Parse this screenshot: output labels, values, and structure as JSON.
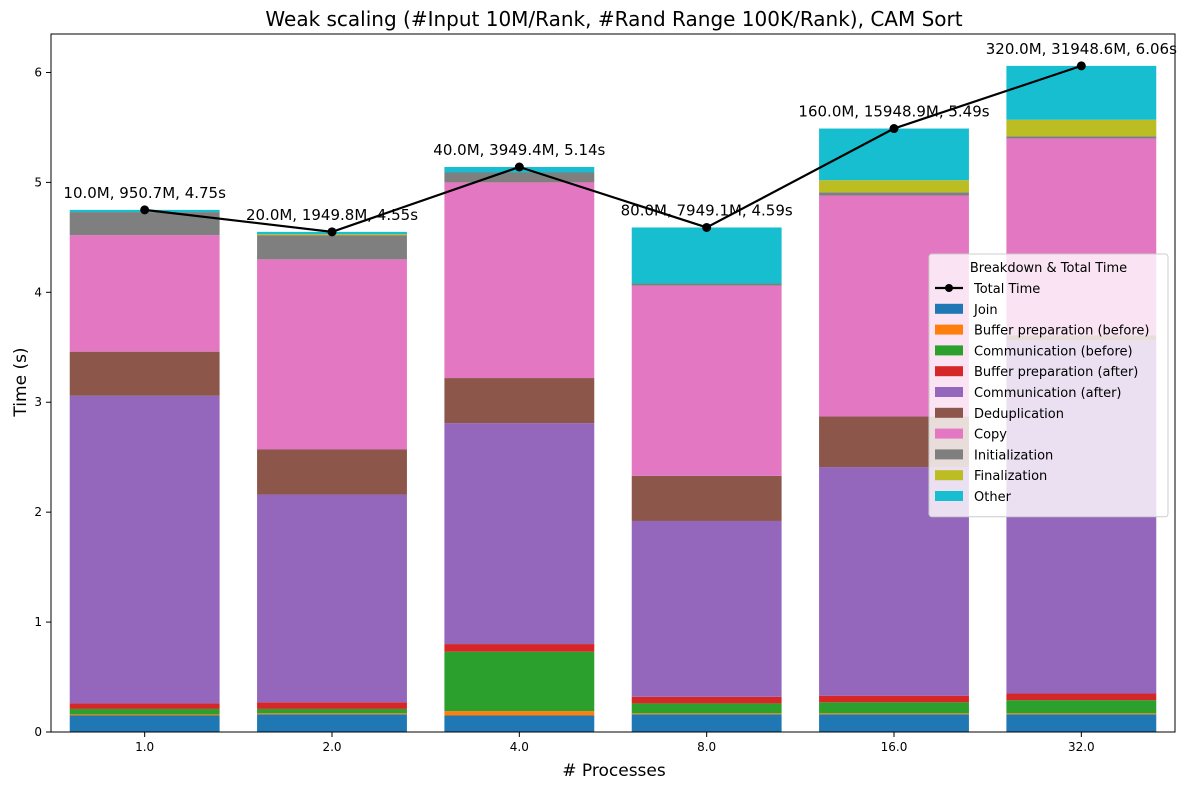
{
  "chart_data": {
    "type": "bar",
    "title": "Weak scaling (#Input 10M/Rank, #Rand Range 100K/Rank), CAM Sort",
    "xlabel": "# Processes",
    "ylabel": "Time (s)",
    "categories": [
      "1.0",
      "2.0",
      "4.0",
      "8.0",
      "16.0",
      "32.0"
    ],
    "ylim": [
      0,
      6.35
    ],
    "yticks": [
      "0",
      "1",
      "2",
      "3",
      "4",
      "5",
      "6"
    ],
    "stacked": true,
    "series": [
      {
        "name": "Join",
        "color": "#1f77b4",
        "values": [
          0.15,
          0.16,
          0.15,
          0.16,
          0.16,
          0.16
        ]
      },
      {
        "name": "Buffer preparation (before)",
        "color": "#ff7f0e",
        "values": [
          0.01,
          0.01,
          0.04,
          0.01,
          0.01,
          0.01
        ]
      },
      {
        "name": "Communication (before)",
        "color": "#2ca02c",
        "values": [
          0.05,
          0.04,
          0.54,
          0.09,
          0.1,
          0.12
        ]
      },
      {
        "name": "Buffer preparation (after)",
        "color": "#d62728",
        "values": [
          0.05,
          0.06,
          0.07,
          0.06,
          0.06,
          0.06
        ]
      },
      {
        "name": "Communication (after)",
        "color": "#9467bd",
        "values": [
          2.8,
          1.89,
          2.01,
          1.6,
          2.08,
          3.21
        ]
      },
      {
        "name": "Deduplication",
        "color": "#8c564b",
        "values": [
          0.4,
          0.41,
          0.41,
          0.41,
          0.46,
          0.05
        ]
      },
      {
        "name": "Copy",
        "color": "#e377c2",
        "values": [
          1.06,
          1.73,
          1.78,
          1.73,
          2.01,
          1.79
        ]
      },
      {
        "name": "Initialization",
        "color": "#7f7f7f",
        "values": [
          0.21,
          0.22,
          0.09,
          0.02,
          0.03,
          0.02
        ]
      },
      {
        "name": "Finalization",
        "color": "#bcbd22",
        "values": [
          0.0,
          0.01,
          0.0,
          0.0,
          0.11,
          0.15
        ]
      },
      {
        "name": "Other",
        "color": "#17becf",
        "values": [
          0.02,
          0.02,
          0.05,
          0.51,
          0.47,
          0.49
        ]
      }
    ],
    "line": {
      "name": "Total Time",
      "color": "#000000",
      "values": [
        4.75,
        4.55,
        5.14,
        4.59,
        5.49,
        6.06
      ],
      "annotations": [
        "10.0M, 950.7M, 4.75s",
        "20.0M, 1949.8M, 4.55s",
        "40.0M, 3949.4M, 5.14s",
        "80.0M, 7949.1M, 4.59s",
        "160.0M, 15948.9M, 5.49s",
        "320.0M, 31948.6M, 6.06s"
      ]
    },
    "legend": {
      "title": "Breakdown & Total Time",
      "placement": "center-right"
    },
    "grid": false
  }
}
